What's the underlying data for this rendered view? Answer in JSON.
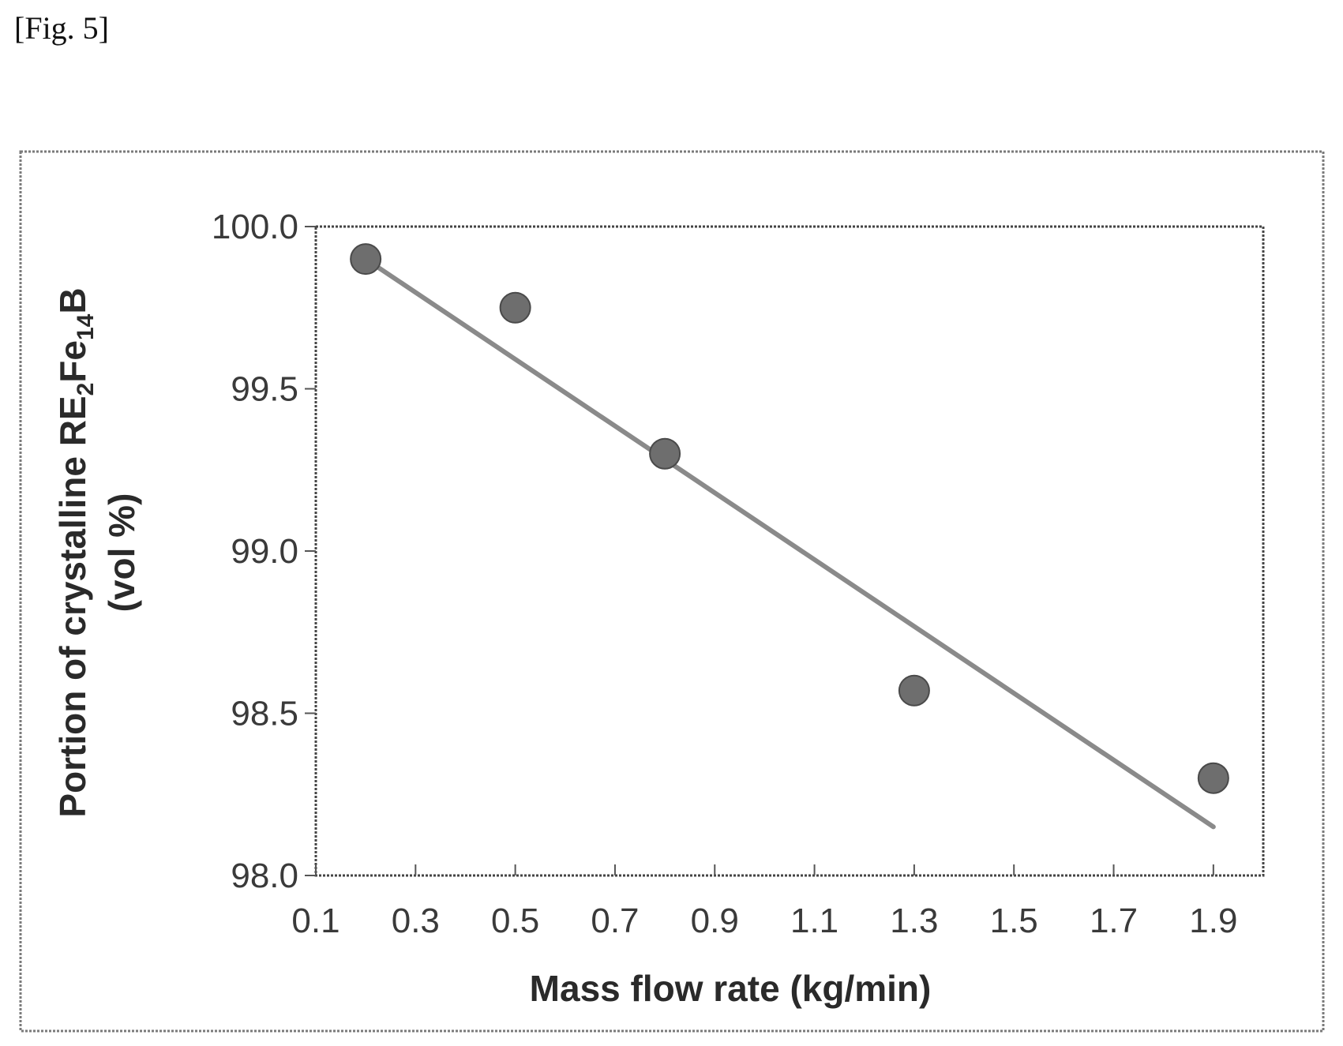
{
  "figure_label": "[Fig. 5]",
  "chart_data": {
    "type": "scatter",
    "xlabel": "Mass flow rate (kg/min)",
    "ylabel": {
      "line1_parts": [
        "Portion of crystalline RE",
        "2",
        "Fe",
        "14",
        "B"
      ],
      "line2": "(vol %)"
    },
    "xlim": [
      0.1,
      2.0
    ],
    "ylim": [
      98.0,
      100.0
    ],
    "xticks": [
      0.1,
      0.3,
      0.5,
      0.7,
      0.9,
      1.1,
      1.3,
      1.5,
      1.7,
      1.9
    ],
    "xtick_labels": [
      "0.1",
      "0.3",
      "0.5",
      "0.7",
      "0.9",
      "1.1",
      "1.3",
      "1.5",
      "1.7",
      "1.9"
    ],
    "yticks": [
      98.0,
      98.5,
      99.0,
      99.5,
      100.0
    ],
    "ytick_labels": [
      "98.0",
      "98.5",
      "99.0",
      "99.5",
      "100.0"
    ],
    "series": [
      {
        "x": [
          0.2,
          0.5,
          0.8,
          1.3,
          1.9
        ],
        "y": [
          99.9,
          99.75,
          99.3,
          98.57,
          98.3
        ]
      }
    ],
    "trendline": {
      "x": [
        0.2,
        1.9
      ],
      "y": [
        99.9,
        98.15
      ]
    },
    "grid": false,
    "marker_color": "#6e6e6e",
    "line_color": "#8a8a8a"
  }
}
